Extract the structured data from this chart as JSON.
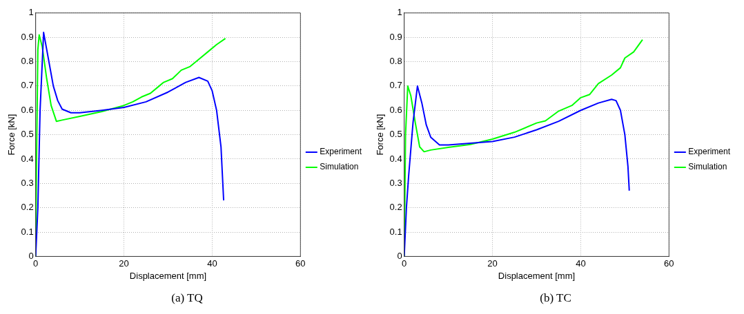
{
  "chart_data": [
    {
      "type": "line",
      "title": "(a) TQ",
      "xlabel": "Displacement [mm]",
      "ylabel": "Force [kN]",
      "xlim": [
        0,
        60
      ],
      "xticks": [
        0,
        20,
        40,
        60
      ],
      "ylim": [
        0,
        1
      ],
      "yticks": [
        0,
        0.1,
        0.2,
        0.3,
        0.4,
        0.5,
        0.6,
        0.7,
        0.8,
        0.9,
        1
      ],
      "grid": true,
      "legend": "right",
      "marker": "none",
      "line_style": "solid",
      "series": [
        {
          "name": "Experiment",
          "color": "#0000ff",
          "x": [
            0,
            0.5,
            1,
            1.8,
            3,
            4,
            5,
            6,
            8,
            10,
            15,
            20,
            25,
            30,
            34,
            37,
            39,
            40,
            41,
            42,
            42.6
          ],
          "values": [
            0,
            0.2,
            0.6,
            0.92,
            0.8,
            0.7,
            0.64,
            0.605,
            0.59,
            0.59,
            0.6,
            0.612,
            0.635,
            0.675,
            0.715,
            0.735,
            0.72,
            0.68,
            0.6,
            0.45,
            0.23
          ]
        },
        {
          "name": "Simulation",
          "color": "#00ff00",
          "x": [
            0,
            0.2,
            0.5,
            0.8,
            1.5,
            2.5,
            3.5,
            4.7,
            6,
            10,
            15,
            20,
            22,
            24,
            26,
            28,
            29,
            31,
            33,
            35,
            37,
            39,
            41,
            43
          ],
          "values": [
            0,
            0.4,
            0.85,
            0.91,
            0.86,
            0.73,
            0.62,
            0.555,
            0.56,
            0.575,
            0.595,
            0.62,
            0.635,
            0.655,
            0.67,
            0.7,
            0.715,
            0.73,
            0.765,
            0.78,
            0.81,
            0.84,
            0.87,
            0.895
          ]
        }
      ]
    },
    {
      "type": "line",
      "title": "(b) TC",
      "xlabel": "Displacement [mm]",
      "ylabel": "Force [kN]",
      "xlim": [
        0,
        60
      ],
      "xticks": [
        0,
        20,
        40,
        60
      ],
      "ylim": [
        0,
        1
      ],
      "yticks": [
        0,
        0.1,
        0.2,
        0.3,
        0.4,
        0.5,
        0.6,
        0.7,
        0.8,
        0.9,
        1
      ],
      "grid": true,
      "legend": "right",
      "marker": "none",
      "line_style": "solid",
      "series": [
        {
          "name": "Experiment",
          "color": "#0000ff",
          "x": [
            0,
            0.5,
            1,
            2,
            3,
            4,
            5,
            6,
            8,
            10,
            15,
            20,
            25,
            30,
            35,
            40,
            44,
            47,
            48,
            49,
            50,
            50.7,
            51
          ],
          "values": [
            0,
            0.2,
            0.33,
            0.55,
            0.7,
            0.63,
            0.54,
            0.49,
            0.458,
            0.458,
            0.465,
            0.472,
            0.49,
            0.52,
            0.555,
            0.6,
            0.63,
            0.645,
            0.64,
            0.6,
            0.5,
            0.37,
            0.27
          ]
        },
        {
          "name": "Simulation",
          "color": "#00ff00",
          "x": [
            0,
            0.3,
            0.8,
            1.5,
            2.5,
            3.5,
            4.5,
            6,
            10,
            15,
            20,
            25,
            30,
            32,
            35,
            38,
            40,
            42,
            44,
            47,
            49,
            50,
            52,
            54
          ],
          "values": [
            0,
            0.5,
            0.7,
            0.66,
            0.55,
            0.45,
            0.43,
            0.437,
            0.448,
            0.46,
            0.482,
            0.51,
            0.548,
            0.557,
            0.597,
            0.62,
            0.652,
            0.665,
            0.71,
            0.745,
            0.775,
            0.815,
            0.84,
            0.89
          ]
        }
      ]
    }
  ]
}
